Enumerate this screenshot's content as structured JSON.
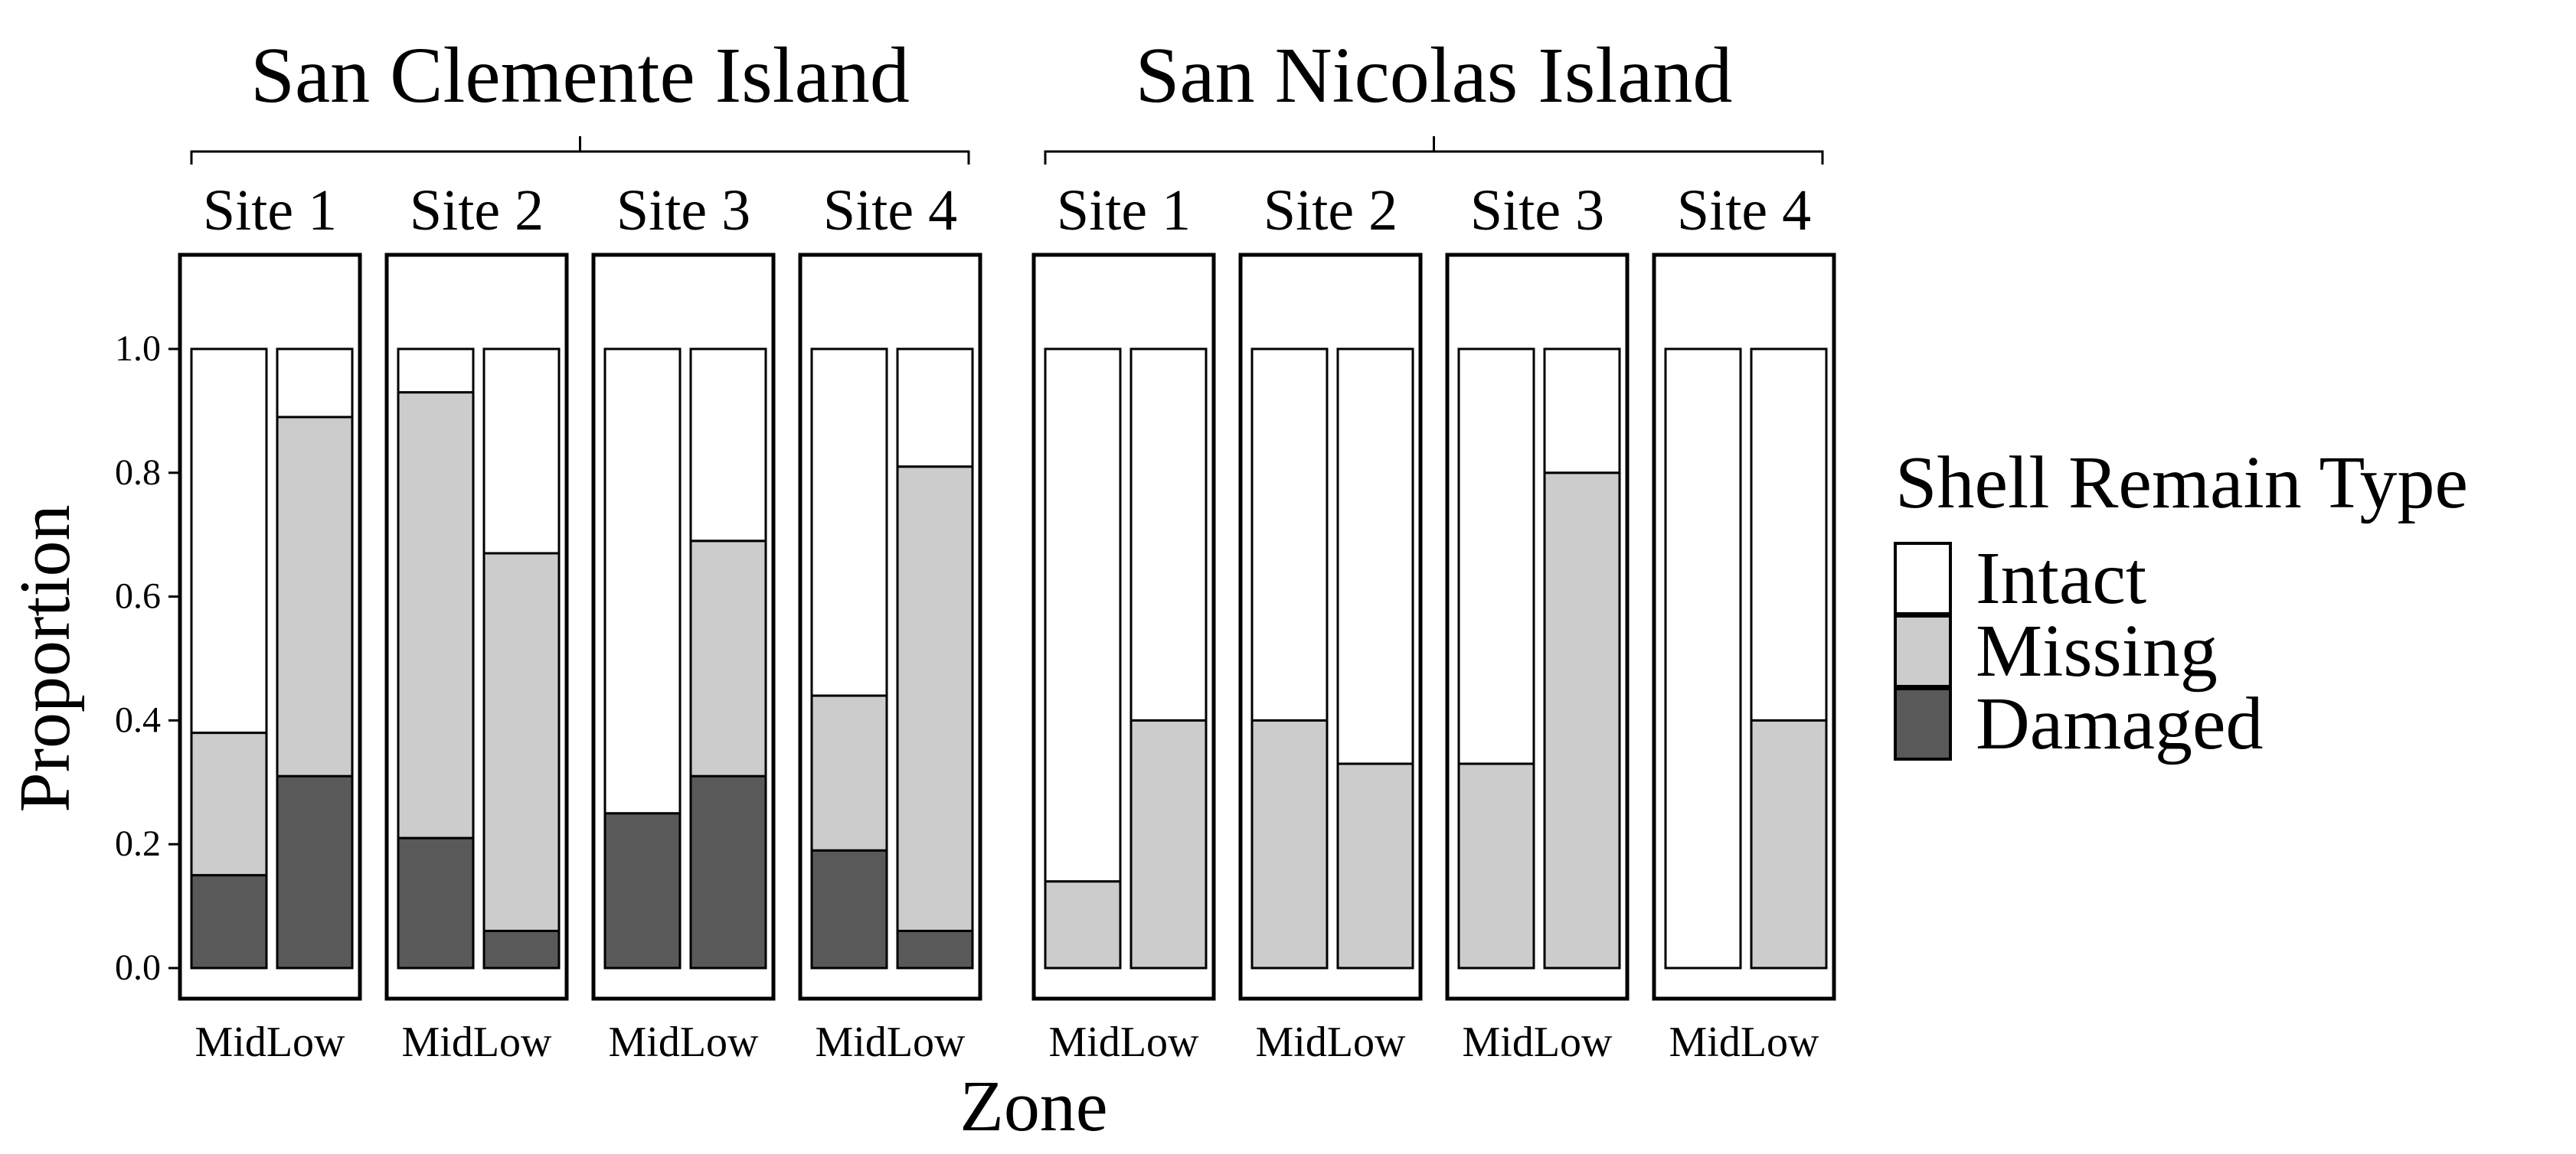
{
  "chart_data": {
    "type": "bar",
    "stacked": true,
    "xlabel": "Zone",
    "ylabel": "Proportion",
    "ylim": [
      0,
      1
    ],
    "y_ticks": [
      "0.0",
      "0.2",
      "0.4",
      "0.6",
      "0.8",
      "1.0"
    ],
    "categories": [
      "Mid",
      "Low"
    ],
    "legend": {
      "title": "Shell Remain Type",
      "placement": "right",
      "entries": [
        "Intact",
        "Missing",
        "Damaged"
      ]
    },
    "colors": {
      "Intact": "#ffffff",
      "Missing": "#cccccc",
      "Damaged": "#595959"
    },
    "groups": [
      {
        "island": "San Clemente Island",
        "sites": [
          {
            "site": "Site 1",
            "bars": [
              {
                "zone": "Mid",
                "Damaged": 0.15,
                "Missing": 0.23,
                "Intact": 0.62
              },
              {
                "zone": "Low",
                "Damaged": 0.31,
                "Missing": 0.58,
                "Intact": 0.11
              }
            ]
          },
          {
            "site": "Site 2",
            "bars": [
              {
                "zone": "Mid",
                "Damaged": 0.21,
                "Missing": 0.72,
                "Intact": 0.07
              },
              {
                "zone": "Low",
                "Damaged": 0.06,
                "Missing": 0.61,
                "Intact": 0.33
              }
            ]
          },
          {
            "site": "Site 3",
            "bars": [
              {
                "zone": "Mid",
                "Damaged": 0.25,
                "Missing": 0.0,
                "Intact": 0.75
              },
              {
                "zone": "Low",
                "Damaged": 0.31,
                "Missing": 0.38,
                "Intact": 0.31
              }
            ]
          },
          {
            "site": "Site 4",
            "bars": [
              {
                "zone": "Mid",
                "Damaged": 0.19,
                "Missing": 0.25,
                "Intact": 0.56
              },
              {
                "zone": "Low",
                "Damaged": 0.06,
                "Missing": 0.75,
                "Intact": 0.19
              }
            ]
          }
        ]
      },
      {
        "island": "San Nicolas Island",
        "sites": [
          {
            "site": "Site 1",
            "bars": [
              {
                "zone": "Mid",
                "Damaged": 0.0,
                "Missing": 0.14,
                "Intact": 0.86
              },
              {
                "zone": "Low",
                "Damaged": 0.0,
                "Missing": 0.4,
                "Intact": 0.6
              }
            ]
          },
          {
            "site": "Site 2",
            "bars": [
              {
                "zone": "Mid",
                "Damaged": 0.0,
                "Missing": 0.4,
                "Intact": 0.6
              },
              {
                "zone": "Low",
                "Damaged": 0.0,
                "Missing": 0.33,
                "Intact": 0.67
              }
            ]
          },
          {
            "site": "Site 3",
            "bars": [
              {
                "zone": "Mid",
                "Damaged": 0.0,
                "Missing": 0.33,
                "Intact": 0.67
              },
              {
                "zone": "Low",
                "Damaged": 0.0,
                "Missing": 0.8,
                "Intact": 0.2
              }
            ]
          },
          {
            "site": "Site 4",
            "bars": [
              {
                "zone": "Mid",
                "Damaged": 0.0,
                "Missing": 0.0,
                "Intact": 1.0
              },
              {
                "zone": "Low",
                "Damaged": 0.0,
                "Missing": 0.4,
                "Intact": 0.6
              }
            ]
          }
        ]
      }
    ]
  }
}
